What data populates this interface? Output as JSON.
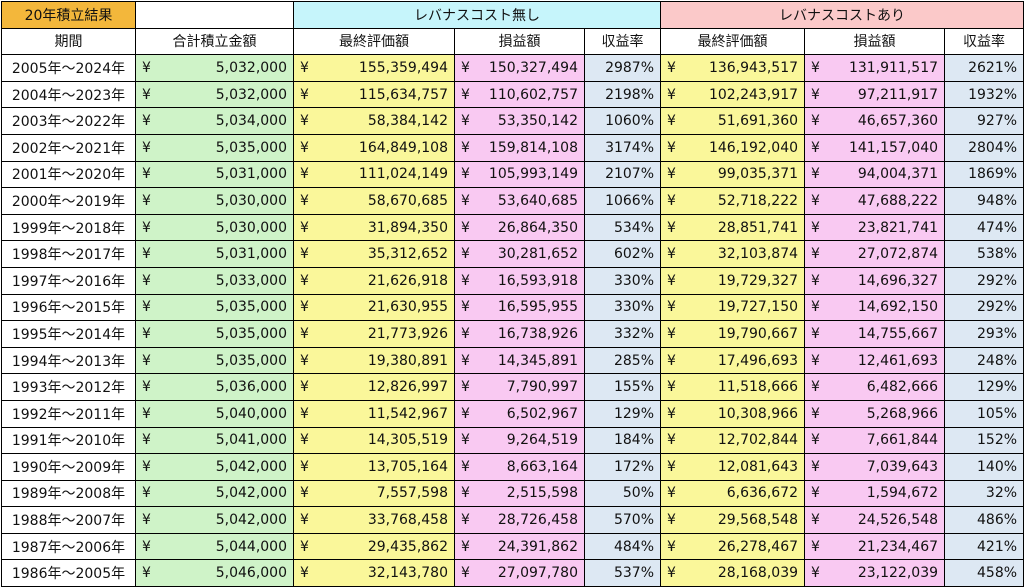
{
  "header": {
    "group1": "20年積立結果",
    "group2": "レバナスコスト無し",
    "group3": "レバナスコストあり",
    "columns": [
      "期間",
      "合計積立金額",
      "最終評価額",
      "損益額",
      "収益率",
      "最終評価額",
      "損益額",
      "収益率"
    ]
  },
  "currency_symbol": "¥",
  "rows": [
    {
      "period": "2005年〜2024年",
      "total": "5,032,000",
      "nc_final": "155,359,494",
      "nc_pl": "150,327,494",
      "nc_rate": "2987%",
      "c_final": "136,943,517",
      "c_pl": "131,911,517",
      "c_rate": "2621%"
    },
    {
      "period": "2004年〜2023年",
      "total": "5,032,000",
      "nc_final": "115,634,757",
      "nc_pl": "110,602,757",
      "nc_rate": "2198%",
      "c_final": "102,243,917",
      "c_pl": "97,211,917",
      "c_rate": "1932%"
    },
    {
      "period": "2003年〜2022年",
      "total": "5,034,000",
      "nc_final": "58,384,142",
      "nc_pl": "53,350,142",
      "nc_rate": "1060%",
      "c_final": "51,691,360",
      "c_pl": "46,657,360",
      "c_rate": "927%"
    },
    {
      "period": "2002年〜2021年",
      "total": "5,035,000",
      "nc_final": "164,849,108",
      "nc_pl": "159,814,108",
      "nc_rate": "3174%",
      "c_final": "146,192,040",
      "c_pl": "141,157,040",
      "c_rate": "2804%"
    },
    {
      "period": "2001年〜2020年",
      "total": "5,031,000",
      "nc_final": "111,024,149",
      "nc_pl": "105,993,149",
      "nc_rate": "2107%",
      "c_final": "99,035,371",
      "c_pl": "94,004,371",
      "c_rate": "1869%"
    },
    {
      "period": "2000年〜2019年",
      "total": "5,030,000",
      "nc_final": "58,670,685",
      "nc_pl": "53,640,685",
      "nc_rate": "1066%",
      "c_final": "52,718,222",
      "c_pl": "47,688,222",
      "c_rate": "948%"
    },
    {
      "period": "1999年〜2018年",
      "total": "5,030,000",
      "nc_final": "31,894,350",
      "nc_pl": "26,864,350",
      "nc_rate": "534%",
      "c_final": "28,851,741",
      "c_pl": "23,821,741",
      "c_rate": "474%"
    },
    {
      "period": "1998年〜2017年",
      "total": "5,031,000",
      "nc_final": "35,312,652",
      "nc_pl": "30,281,652",
      "nc_rate": "602%",
      "c_final": "32,103,874",
      "c_pl": "27,072,874",
      "c_rate": "538%"
    },
    {
      "period": "1997年〜2016年",
      "total": "5,033,000",
      "nc_final": "21,626,918",
      "nc_pl": "16,593,918",
      "nc_rate": "330%",
      "c_final": "19,729,327",
      "c_pl": "14,696,327",
      "c_rate": "292%"
    },
    {
      "period": "1996年〜2015年",
      "total": "5,035,000",
      "nc_final": "21,630,955",
      "nc_pl": "16,595,955",
      "nc_rate": "330%",
      "c_final": "19,727,150",
      "c_pl": "14,692,150",
      "c_rate": "292%"
    },
    {
      "period": "1995年〜2014年",
      "total": "5,035,000",
      "nc_final": "21,773,926",
      "nc_pl": "16,738,926",
      "nc_rate": "332%",
      "c_final": "19,790,667",
      "c_pl": "14,755,667",
      "c_rate": "293%"
    },
    {
      "period": "1994年〜2013年",
      "total": "5,035,000",
      "nc_final": "19,380,891",
      "nc_pl": "14,345,891",
      "nc_rate": "285%",
      "c_final": "17,496,693",
      "c_pl": "12,461,693",
      "c_rate": "248%"
    },
    {
      "period": "1993年〜2012年",
      "total": "5,036,000",
      "nc_final": "12,826,997",
      "nc_pl": "7,790,997",
      "nc_rate": "155%",
      "c_final": "11,518,666",
      "c_pl": "6,482,666",
      "c_rate": "129%"
    },
    {
      "period": "1992年〜2011年",
      "total": "5,040,000",
      "nc_final": "11,542,967",
      "nc_pl": "6,502,967",
      "nc_rate": "129%",
      "c_final": "10,308,966",
      "c_pl": "5,268,966",
      "c_rate": "105%"
    },
    {
      "period": "1991年〜2010年",
      "total": "5,041,000",
      "nc_final": "14,305,519",
      "nc_pl": "9,264,519",
      "nc_rate": "184%",
      "c_final": "12,702,844",
      "c_pl": "7,661,844",
      "c_rate": "152%"
    },
    {
      "period": "1990年〜2009年",
      "total": "5,042,000",
      "nc_final": "13,705,164",
      "nc_pl": "8,663,164",
      "nc_rate": "172%",
      "c_final": "12,081,643",
      "c_pl": "7,039,643",
      "c_rate": "140%"
    },
    {
      "period": "1989年〜2008年",
      "total": "5,042,000",
      "nc_final": "7,557,598",
      "nc_pl": "2,515,598",
      "nc_rate": "50%",
      "c_final": "6,636,672",
      "c_pl": "1,594,672",
      "c_rate": "32%"
    },
    {
      "period": "1988年〜2007年",
      "total": "5,042,000",
      "nc_final": "33,768,458",
      "nc_pl": "28,726,458",
      "nc_rate": "570%",
      "c_final": "29,568,548",
      "c_pl": "24,526,548",
      "c_rate": "486%"
    },
    {
      "period": "1987年〜2006年",
      "total": "5,044,000",
      "nc_final": "29,435,862",
      "nc_pl": "24,391,862",
      "nc_rate": "484%",
      "c_final": "26,278,467",
      "c_pl": "21,234,467",
      "c_rate": "421%"
    },
    {
      "period": "1986年〜2005年",
      "total": "5,046,000",
      "nc_final": "32,143,780",
      "nc_pl": "27,097,780",
      "nc_rate": "537%",
      "c_final": "28,168,039",
      "c_pl": "23,122,039",
      "c_rate": "458%"
    }
  ]
}
